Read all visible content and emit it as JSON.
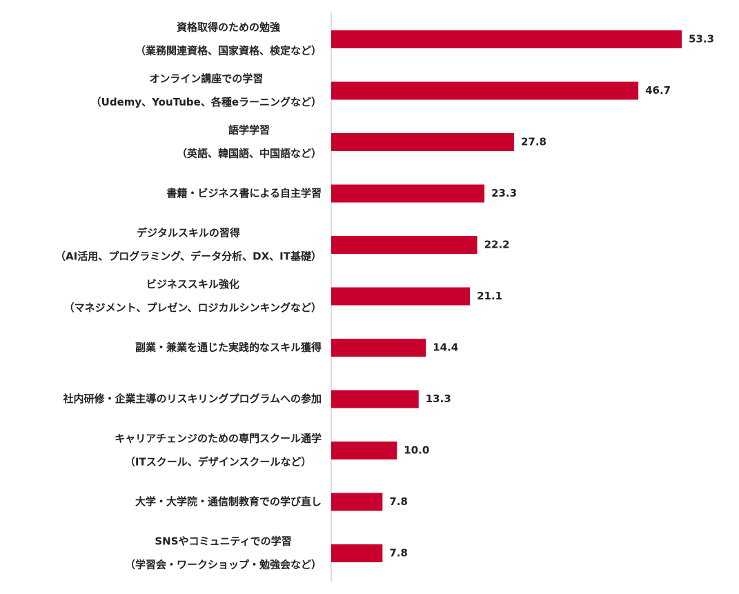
{
  "chart_data": {
    "type": "bar",
    "orientation": "horizontal",
    "color": "#c8002d",
    "categories": [
      [
        "資格取得のための勉強",
        "（業務関連資格、国家資格、検定など）"
      ],
      [
        "オンライン講座での学習",
        "（Udemy、YouTube、各種eラーニングなど）"
      ],
      [
        "語学学習",
        "（英語、韓国語、中国語など）"
      ],
      [
        "書籍・ビジネス書による自主学習"
      ],
      [
        "デジタルスキルの習得",
        "（AI活用、プログラミング、データ分析、DX、IT基礎）"
      ],
      [
        "ビジネススキル強化",
        "（マネジメント、プレゼン、ロジカルシンキングなど）"
      ],
      [
        "副業・兼業を通じた実践的なスキル獲得"
      ],
      [
        "社内研修・企業主導のリスキリングプログラムへの参加"
      ],
      [
        "キャリアチェンジのための専門スクール通学",
        "（ITスクール、デザインスクールなど）"
      ],
      [
        "大学・大学院・通信制教育での学び直し"
      ],
      [
        "SNSやコミュニティでの学習",
        "（学習会・ワークショップ・勉強会など）"
      ]
    ],
    "values": [
      53.3,
      46.7,
      27.8,
      23.3,
      22.2,
      21.1,
      14.4,
      13.3,
      10.0,
      7.8,
      7.8
    ],
    "value_labels": [
      "53.3",
      "46.7",
      "27.8",
      "23.3",
      "22.2",
      "21.1",
      "14.4",
      "13.3",
      "10.0",
      "7.8",
      "7.8"
    ]
  }
}
